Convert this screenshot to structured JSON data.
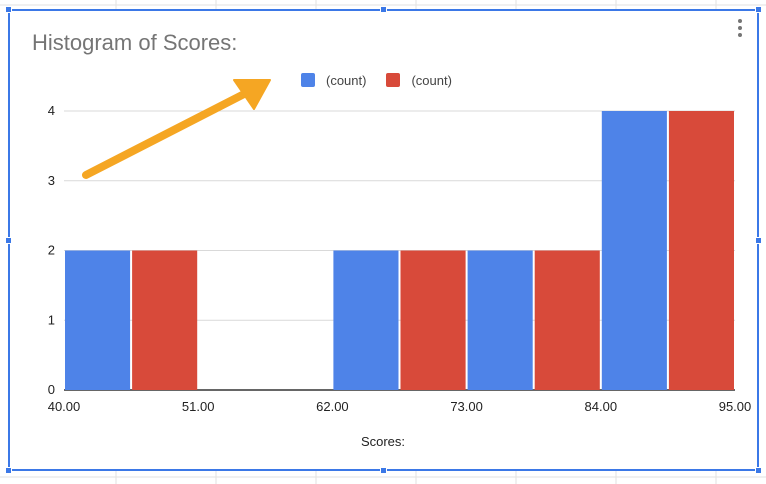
{
  "chart_data": {
    "type": "bar",
    "title": "Histogram of Scores:",
    "xlabel": "Scores:",
    "ylabel": "",
    "x_ticks": [
      "40.00",
      "51.00",
      "62.00",
      "73.00",
      "84.00",
      "95.00"
    ],
    "y_ticks": [
      "0",
      "1",
      "2",
      "3",
      "4"
    ],
    "ylim": [
      0,
      4
    ],
    "bins": [
      [
        40,
        51
      ],
      [
        51,
        62
      ],
      [
        62,
        73
      ],
      [
        73,
        84
      ],
      [
        84,
        95
      ]
    ],
    "series": [
      {
        "name": "(count)",
        "color": "#4e83e8",
        "values": [
          2,
          0,
          2,
          2,
          4
        ]
      },
      {
        "name": "(count)",
        "color": "#d84a3a",
        "values": [
          2,
          0,
          2,
          2,
          4
        ]
      }
    ],
    "grid": true,
    "legend": "top"
  },
  "annotation": {
    "type": "arrow",
    "color": "#f5a623"
  },
  "menu_icon": "more-vert-icon"
}
